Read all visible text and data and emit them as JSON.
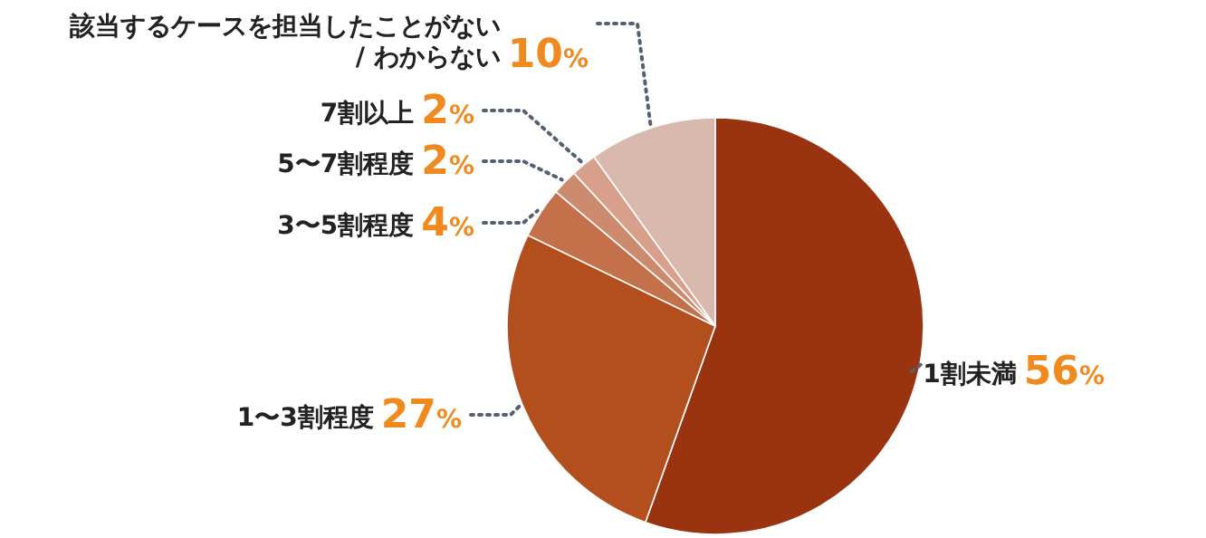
{
  "chart_data": {
    "type": "pie",
    "categories": [
      "1割未満",
      "1〜3割程度",
      "3〜5割程度",
      "5〜7割程度",
      "7割以上",
      "該当するケースを担当したことがない\n/ わからない"
    ],
    "values": [
      56,
      27,
      4,
      2,
      2,
      10
    ],
    "colors": [
      "#9a3410",
      "#b34f1c",
      "#c4704a",
      "#cc8a6e",
      "#d8a08a",
      "#d9b8ad"
    ],
    "value_labels": [
      "56%",
      "27%",
      "4%",
      "2%",
      "2%",
      "10%"
    ]
  }
}
